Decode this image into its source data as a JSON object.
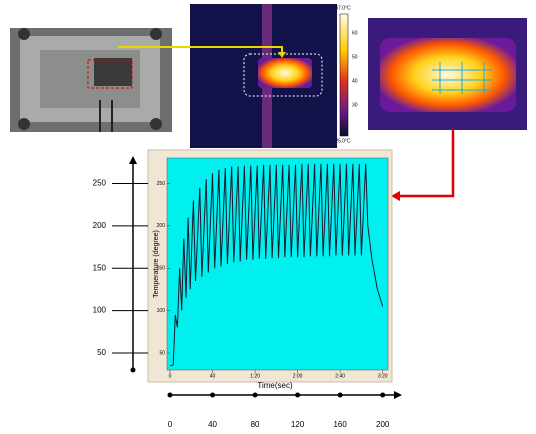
{
  "images": {
    "colorbar_labels": [
      "67.0°C",
      "60",
      "50",
      "40",
      "30",
      "25.0°C"
    ]
  },
  "chart_data": {
    "type": "line",
    "xlabel": "Time(sec)",
    "ylabel": "Temperature (degree)",
    "x": [
      0,
      3,
      5,
      7,
      9,
      11,
      13,
      15,
      17,
      19,
      22,
      24,
      28,
      30,
      34,
      36,
      40,
      42,
      46,
      48,
      52,
      54,
      58,
      60,
      64,
      66,
      70,
      72,
      76,
      78,
      82,
      84,
      88,
      90,
      94,
      96,
      100,
      102,
      106,
      108,
      112,
      114,
      118,
      120,
      124,
      126,
      130,
      132,
      136,
      138,
      142,
      144,
      148,
      150,
      154,
      156,
      160,
      162,
      166,
      168,
      172,
      174,
      178,
      180,
      184,
      186,
      190,
      195,
      200
    ],
    "series": [
      {
        "color": "#1a1a2e",
        "values": [
          35,
          36,
          95,
          80,
          150,
          100,
          185,
          115,
          210,
          125,
          230,
          135,
          245,
          140,
          255,
          145,
          262,
          150,
          266,
          152,
          268,
          155,
          270,
          157,
          270,
          158,
          271,
          160,
          271,
          160,
          271,
          161,
          272,
          161,
          272,
          162,
          272,
          162,
          272,
          163,
          272,
          163,
          272,
          163,
          273,
          163,
          273,
          164,
          273,
          164,
          273,
          164,
          273,
          164,
          273,
          165,
          273,
          165,
          273,
          165,
          273,
          165,
          273,
          165,
          273,
          200,
          160,
          125,
          105
        ]
      }
    ],
    "xlim": [
      0,
      205
    ],
    "ylim": [
      30,
      280
    ],
    "xticks": [
      0,
      40,
      80,
      120,
      160,
      200
    ],
    "yticks": [
      50,
      100,
      150,
      200,
      250
    ],
    "inner_xticks": [
      0,
      40,
      {
        "value": 80,
        "label": "1:20"
      },
      {
        "value": 120,
        "label": "2:00"
      },
      {
        "value": 160,
        "label": "2:40"
      },
      {
        "value": 200,
        "label": "3:20"
      }
    ],
    "inner_yticks": [
      50,
      100,
      150,
      200,
      250
    ]
  }
}
